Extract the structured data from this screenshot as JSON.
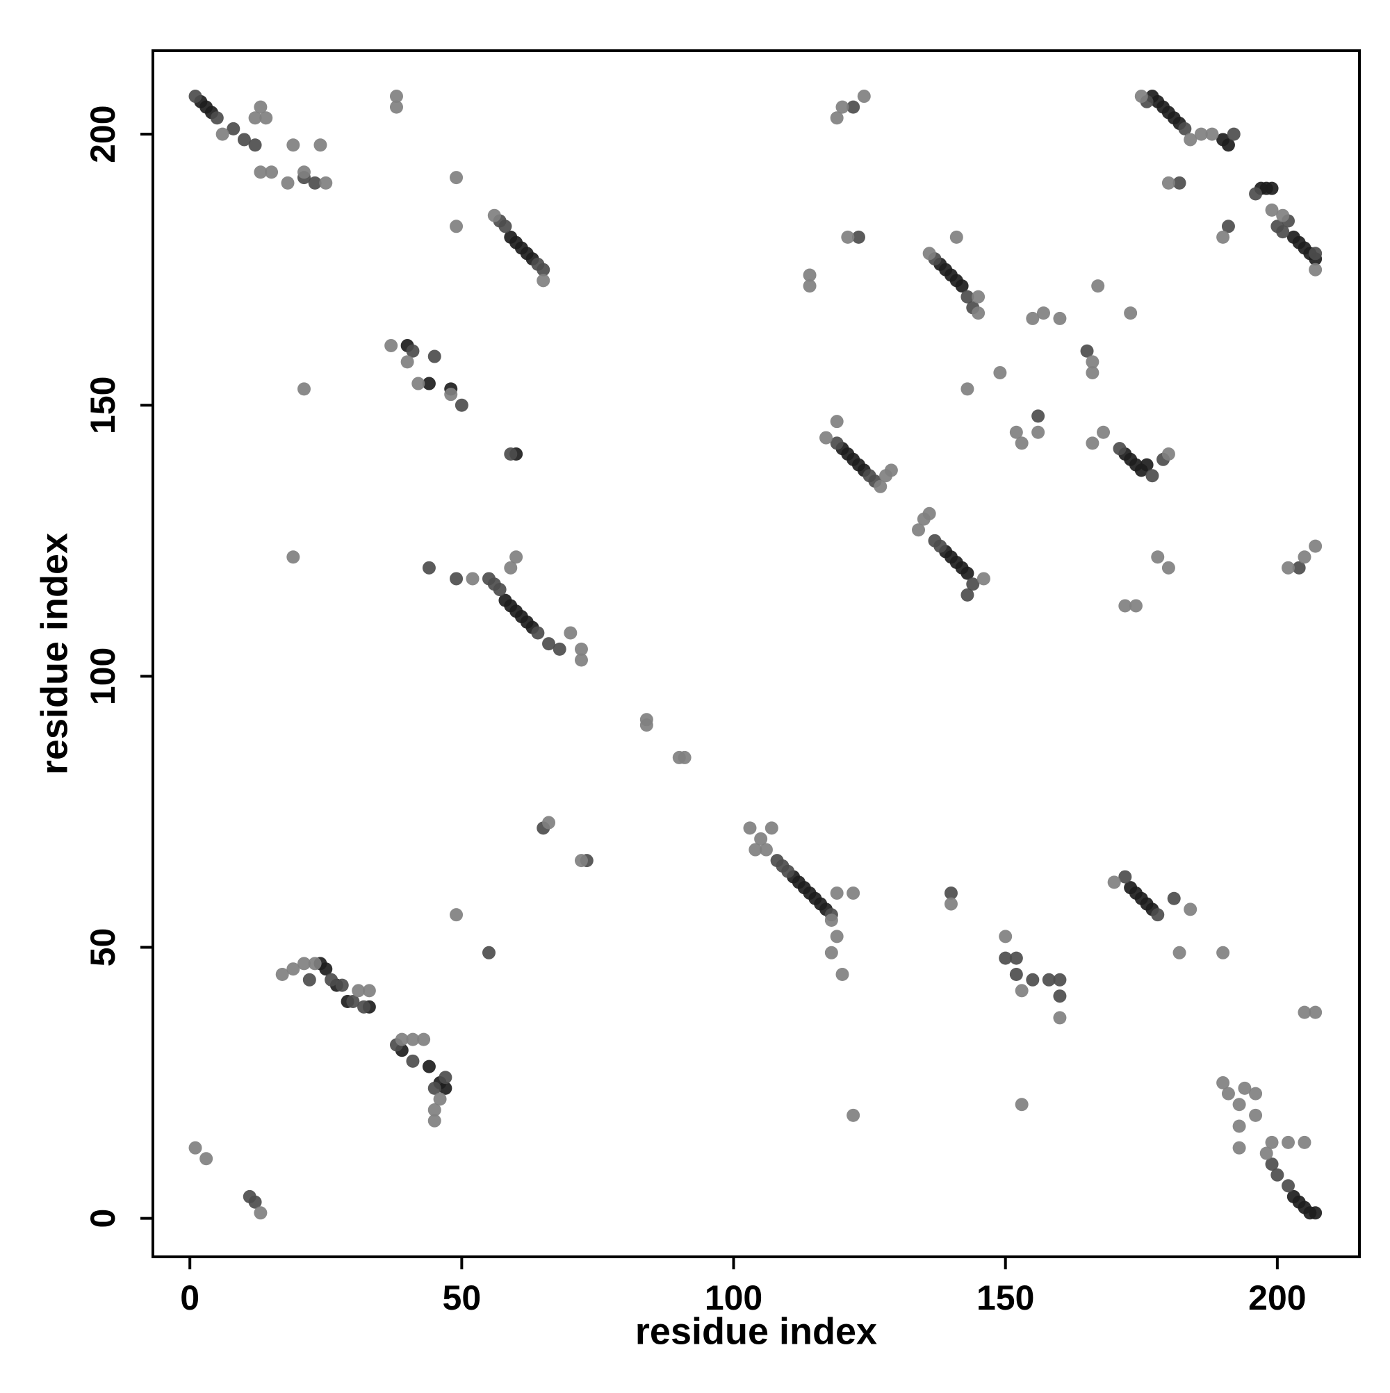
{
  "chart_data": {
    "type": "scatter",
    "xlabel": "residue index",
    "ylabel": "residue index",
    "xlim": [
      -6.8,
      215.1
    ],
    "ylim": [
      -7.1,
      215.4
    ],
    "xticks": [
      0,
      50,
      100,
      150,
      200
    ],
    "yticks": [
      0,
      50,
      100,
      150,
      200
    ],
    "series": [
      {
        "color": "#1e1e1e",
        "x": [
          2,
          3,
          4,
          59,
          60,
          61,
          62,
          63,
          58,
          59,
          60,
          61,
          62,
          63,
          111,
          112,
          113,
          114,
          115,
          116,
          117,
          173,
          174,
          175,
          176,
          177,
          203,
          204,
          205,
          206,
          207,
          138,
          139,
          140,
          141,
          142,
          120,
          121,
          122,
          123,
          124,
          139,
          140,
          141,
          142,
          143,
          172,
          173,
          174,
          175,
          176,
          177,
          178,
          179,
          180,
          181,
          182,
          190,
          191,
          197,
          198,
          199,
          203,
          204,
          205,
          206,
          207,
          24,
          25,
          27,
          29,
          33,
          39,
          44,
          46,
          47,
          40,
          44,
          48,
          60
        ],
        "values": [
          206,
          205,
          204,
          181,
          180,
          179,
          178,
          177,
          114,
          113,
          112,
          111,
          110,
          109,
          63,
          62,
          61,
          60,
          59,
          58,
          57,
          61,
          60,
          59,
          58,
          57,
          4,
          3,
          2,
          1,
          1,
          176,
          175,
          174,
          173,
          172,
          142,
          141,
          140,
          139,
          138,
          123,
          122,
          121,
          120,
          119,
          141,
          140,
          139,
          138,
          139,
          207,
          206,
          205,
          204,
          203,
          202,
          199,
          198,
          190,
          190,
          190,
          181,
          180,
          179,
          178,
          177,
          47,
          46,
          43,
          40,
          39,
          31,
          28,
          25,
          24,
          161,
          154,
          153,
          141
        ]
      },
      {
        "color": "#4d4d4d",
        "x": [
          1,
          5,
          8,
          10,
          12,
          57,
          58,
          64,
          65,
          55,
          56,
          57,
          64,
          66,
          68,
          108,
          109,
          110,
          118,
          172,
          178,
          181,
          202,
          200,
          199,
          137,
          143,
          144,
          119,
          125,
          126,
          137,
          138,
          144,
          143,
          171,
          177,
          179,
          183,
          176,
          192,
          196,
          200,
          201,
          202,
          207,
          22,
          26,
          28,
          30,
          32,
          38,
          41,
          45,
          47,
          41,
          45,
          50,
          21,
          23,
          12,
          11,
          140,
          150,
          152,
          152,
          155,
          158,
          160,
          160,
          182,
          191,
          122,
          123,
          165,
          156,
          49,
          55,
          44,
          59,
          73,
          65,
          204
        ],
        "values": [
          207,
          203,
          201,
          199,
          198,
          184,
          183,
          176,
          175,
          118,
          117,
          116,
          108,
          106,
          105,
          66,
          65,
          64,
          56,
          63,
          56,
          59,
          6,
          8,
          10,
          177,
          170,
          168,
          143,
          137,
          136,
          125,
          124,
          117,
          115,
          142,
          137,
          140,
          201,
          206,
          200,
          189,
          183,
          182,
          184,
          178,
          44,
          44,
          43,
          40,
          39,
          32,
          29,
          24,
          26,
          160,
          159,
          150,
          192,
          191,
          3,
          4,
          60,
          48,
          48,
          45,
          44,
          44,
          44,
          41,
          191,
          183,
          205,
          181,
          160,
          148,
          118,
          49,
          120,
          141,
          66,
          72,
          120
        ]
      },
      {
        "color": "#808080",
        "x": [
          13,
          14,
          12,
          6,
          15,
          13,
          19,
          18,
          24,
          25,
          21,
          38,
          38,
          49,
          49,
          56,
          65,
          37,
          40,
          42,
          48,
          21,
          19,
          52,
          60,
          59,
          70,
          72,
          72,
          84,
          84,
          90,
          91,
          66,
          72,
          49,
          103,
          105,
          106,
          107,
          104,
          118,
          119,
          119,
          122,
          118,
          120,
          122,
          140,
          150,
          153,
          160,
          153,
          170,
          184,
          182,
          190,
          190,
          191,
          193,
          194,
          193,
          193,
          196,
          196,
          199,
          202,
          205,
          198,
          205,
          207,
          1,
          3,
          13,
          17,
          19,
          21,
          23,
          31,
          33,
          39,
          41,
          43,
          45,
          45,
          46,
          119,
          120,
          124,
          114,
          114,
          121,
          136,
          145,
          145,
          141,
          155,
          157,
          160,
          166,
          166,
          167,
          173,
          143,
          149,
          152,
          153,
          156,
          119,
          117,
          127,
          128,
          129,
          134,
          135,
          136,
          146,
          168,
          166,
          180,
          172,
          174,
          178,
          180,
          175,
          184,
          186,
          188,
          180,
          190,
          199,
          201,
          207,
          207,
          205,
          202
        ],
        "values": [
          205,
          203,
          203,
          200,
          193,
          193,
          198,
          191,
          198,
          191,
          193,
          207,
          205,
          192,
          183,
          185,
          173,
          161,
          158,
          154,
          152,
          153,
          122,
          118,
          122,
          120,
          108,
          105,
          103,
          92,
          91,
          85,
          85,
          73,
          66,
          56,
          72,
          70,
          68,
          72,
          68,
          55,
          52,
          60,
          60,
          49,
          45,
          19,
          58,
          52,
          42,
          37,
          21,
          62,
          57,
          49,
          49,
          25,
          23,
          21,
          24,
          17,
          13,
          23,
          19,
          14,
          14,
          14,
          12,
          38,
          38,
          13,
          11,
          1,
          45,
          46,
          47,
          47,
          42,
          42,
          33,
          33,
          33,
          20,
          18,
          22,
          203,
          205,
          207,
          174,
          172,
          181,
          178,
          170,
          167,
          181,
          166,
          167,
          166,
          158,
          156,
          172,
          167,
          153,
          156,
          145,
          143,
          145,
          147,
          144,
          135,
          137,
          138,
          127,
          129,
          130,
          118,
          145,
          143,
          141,
          113,
          113,
          122,
          120,
          207,
          199,
          200,
          200,
          191,
          181,
          186,
          185,
          175,
          124,
          122,
          120
        ]
      }
    ]
  }
}
